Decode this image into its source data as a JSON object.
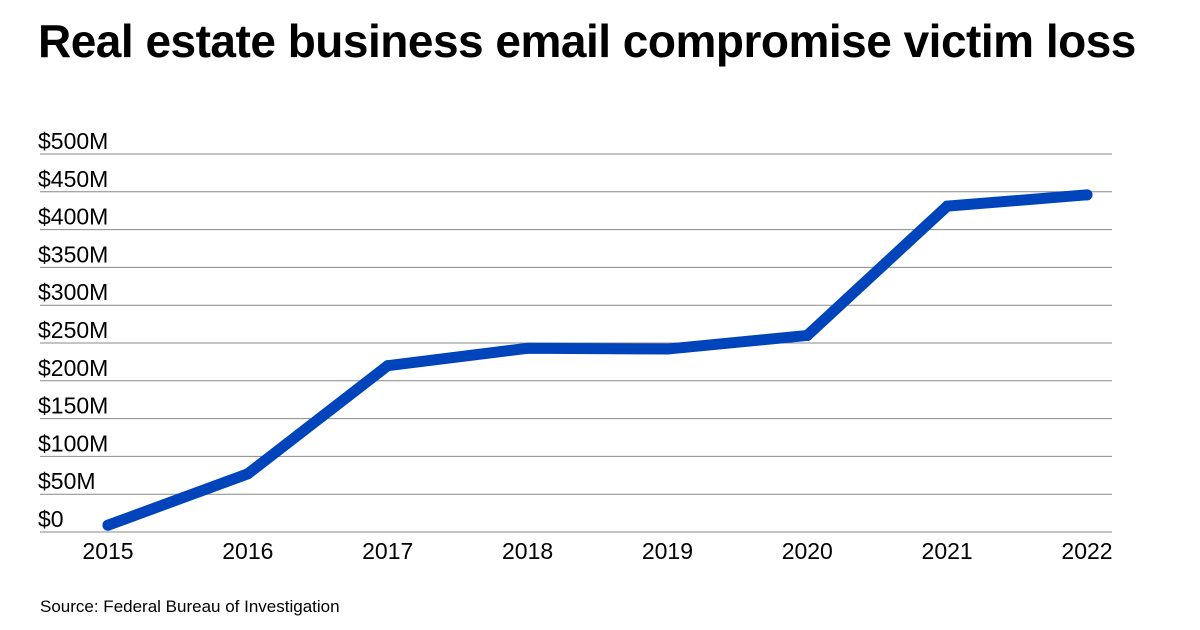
{
  "chart_data": {
    "type": "line",
    "title": "Real estate business email compromise victim loss",
    "xlabel": "",
    "ylabel": "",
    "x": [
      "2015",
      "2016",
      "2017",
      "2018",
      "2019",
      "2020",
      "2021",
      "2022"
    ],
    "series": [
      {
        "values": [
          9,
          77,
          220,
          243,
          242,
          260,
          431,
          446
        ]
      }
    ],
    "y_ticks": [
      {
        "value": 0,
        "label": "$0"
      },
      {
        "value": 50,
        "label": "$50M"
      },
      {
        "value": 100,
        "label": "$100M"
      },
      {
        "value": 150,
        "label": "$150M"
      },
      {
        "value": 200,
        "label": "$200M"
      },
      {
        "value": 250,
        "label": "$250M"
      },
      {
        "value": 300,
        "label": "$300M"
      },
      {
        "value": 350,
        "label": "$350M"
      },
      {
        "value": 400,
        "label": "$400M"
      },
      {
        "value": 450,
        "label": "$450M"
      },
      {
        "value": 500,
        "label": "$500M"
      }
    ],
    "ylim": [
      0,
      500
    ],
    "y_unit": "millions of US dollars",
    "grid": true,
    "legend": "none",
    "line_color": "#0044BB",
    "grid_color": "#888888"
  },
  "source": "Source: Federal Bureau of Investigation"
}
